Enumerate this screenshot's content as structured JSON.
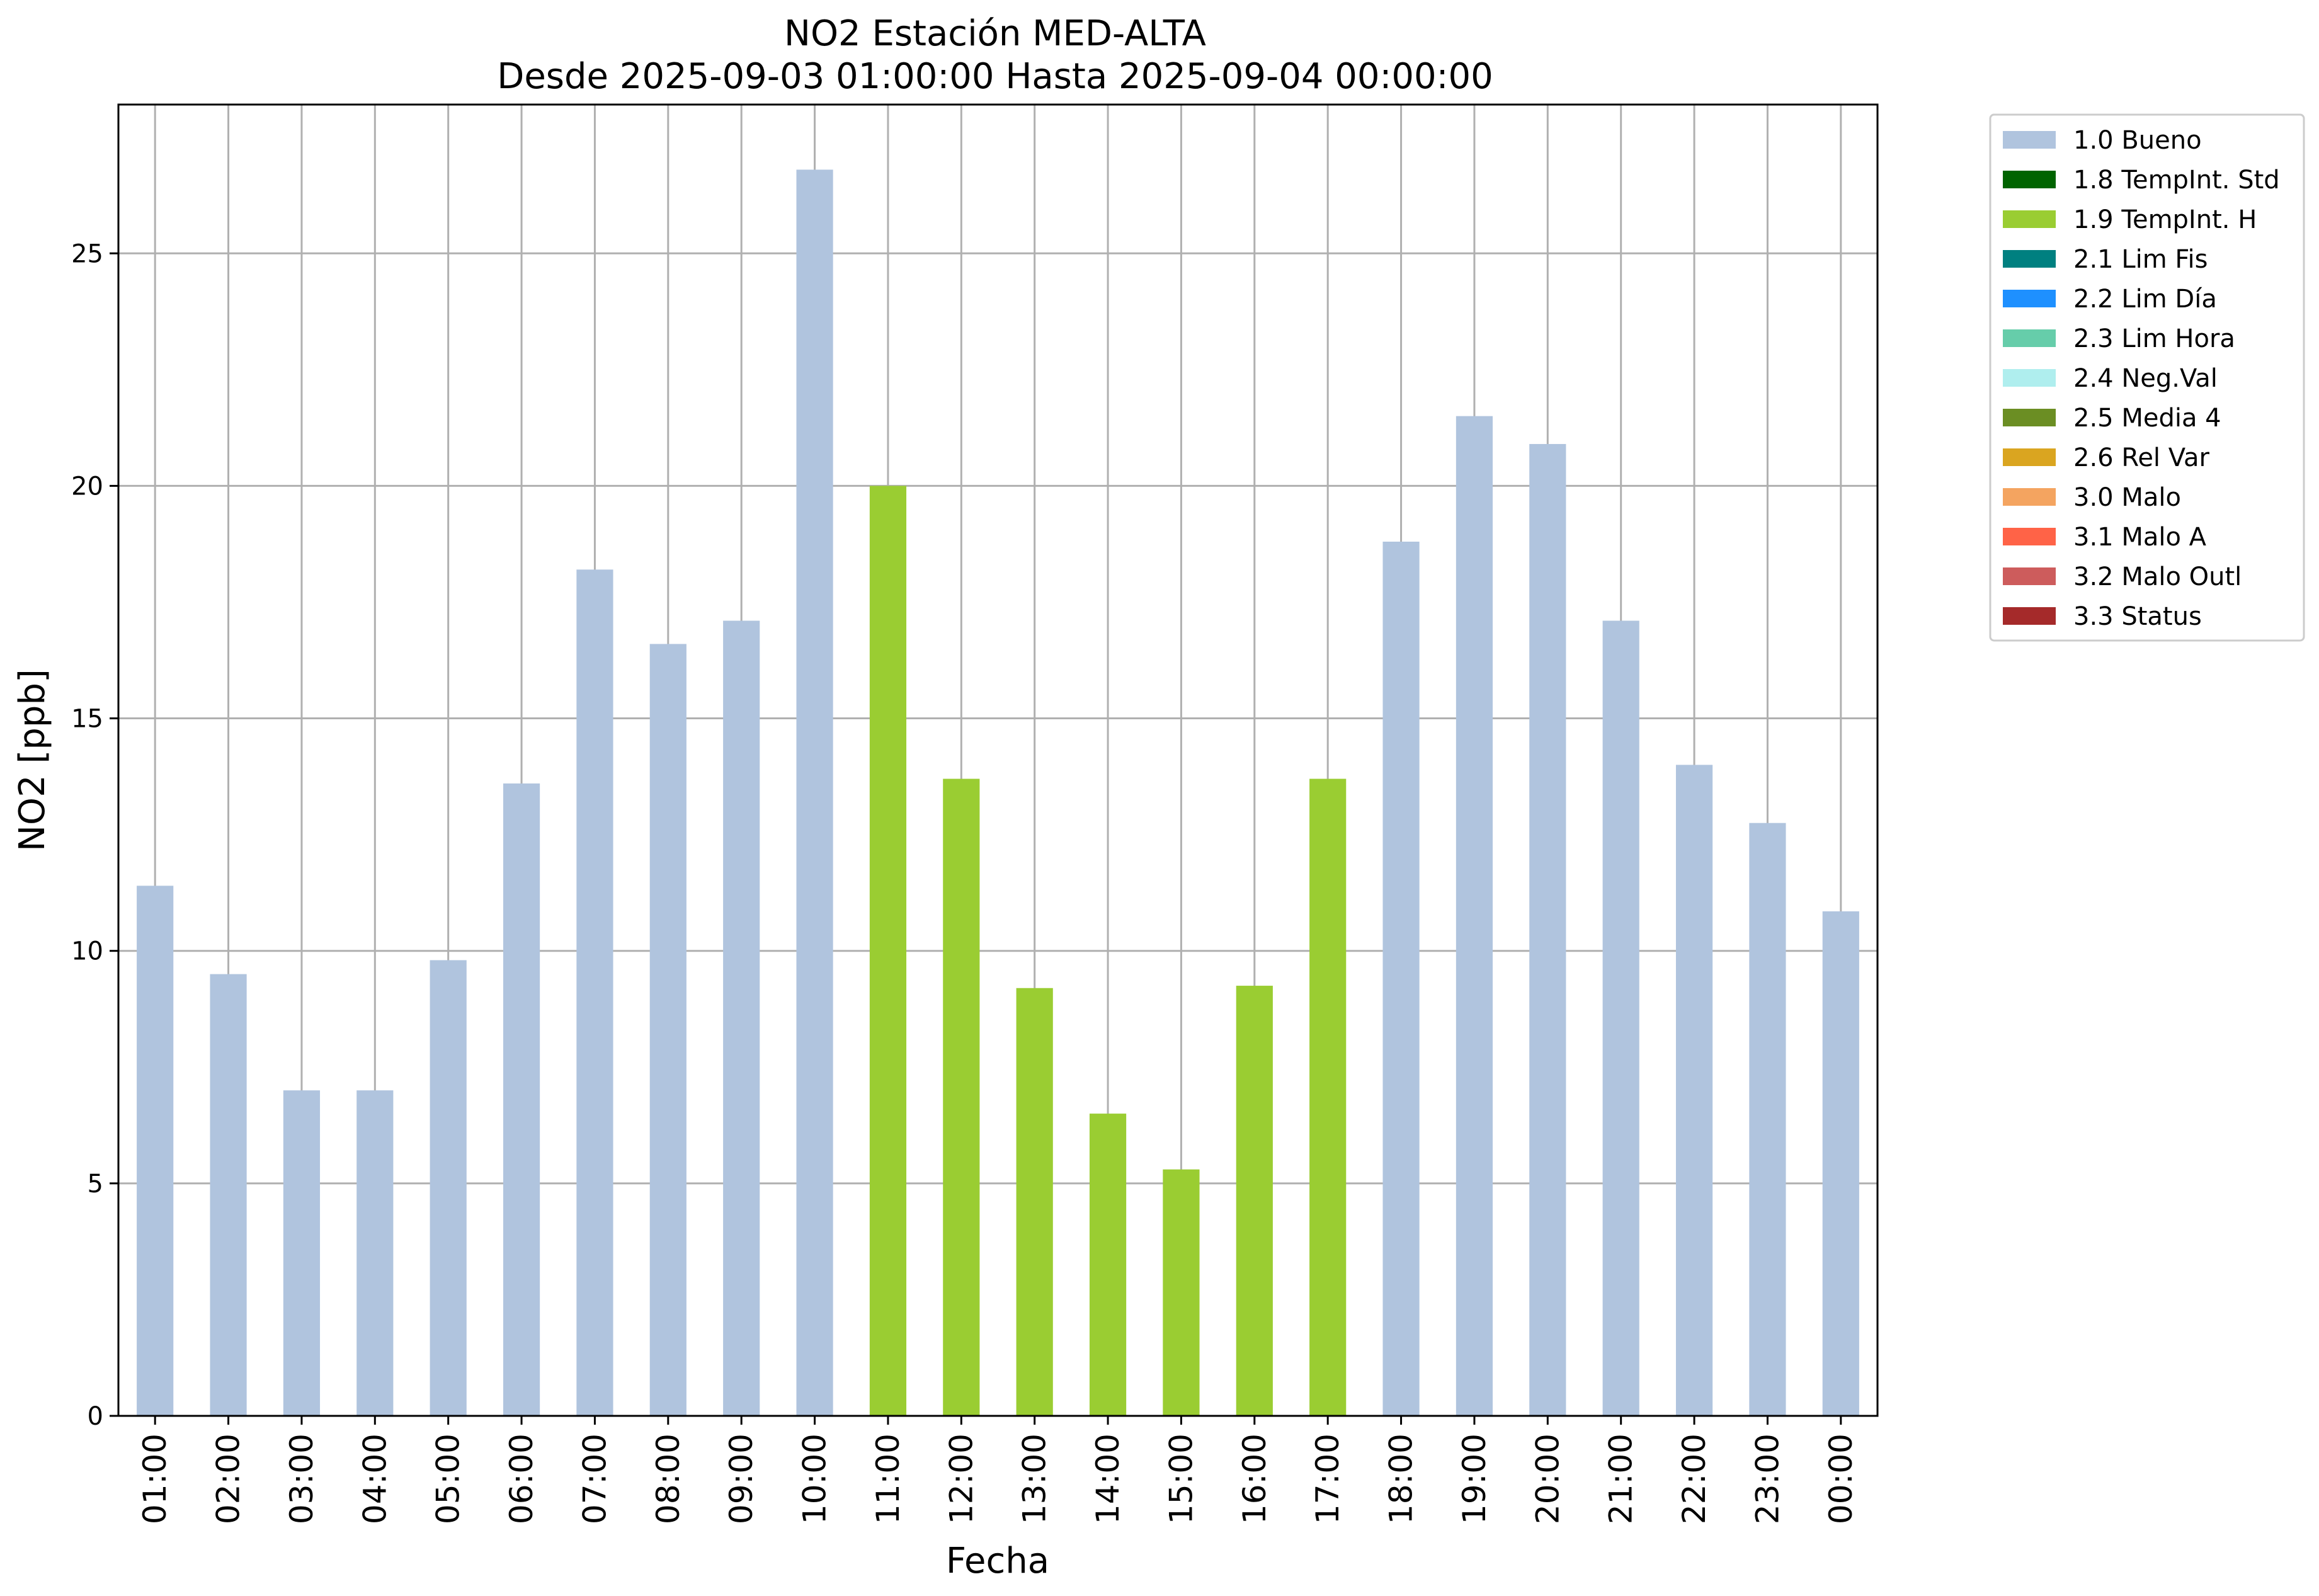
{
  "chart_data": {
    "type": "bar",
    "title": "NO2 Estación MED-ALTA",
    "subtitle": "Desde 2025-09-03 01:00:00 Hasta 2025-09-04 00:00:00",
    "xlabel": "Fecha",
    "ylabel": "NO2 [ppb]",
    "ylim": [
      0,
      28.2
    ],
    "yticks": [
      0,
      5,
      10,
      15,
      20,
      25
    ],
    "grid": true,
    "legend_position": "outside-top-right",
    "categories": [
      "01:00",
      "02:00",
      "03:00",
      "04:00",
      "05:00",
      "06:00",
      "07:00",
      "08:00",
      "09:00",
      "10:00",
      "11:00",
      "12:00",
      "13:00",
      "14:00",
      "15:00",
      "16:00",
      "17:00",
      "18:00",
      "19:00",
      "20:00",
      "21:00",
      "22:00",
      "23:00",
      "00:00"
    ],
    "values": [
      11.4,
      9.5,
      7.0,
      7.0,
      9.8,
      13.6,
      18.2,
      16.6,
      17.1,
      26.8,
      20.0,
      13.7,
      9.2,
      6.5,
      5.3,
      9.25,
      13.7,
      18.8,
      21.5,
      20.9,
      17.1,
      14.0,
      12.75,
      10.85
    ],
    "flags": [
      "1.0",
      "1.0",
      "1.0",
      "1.0",
      "1.0",
      "1.0",
      "1.0",
      "1.0",
      "1.0",
      "1.0",
      "1.9",
      "1.9",
      "1.9",
      "1.9",
      "1.9",
      "1.9",
      "1.9",
      "1.0",
      "1.0",
      "1.0",
      "1.0",
      "1.0",
      "1.0",
      "1.0"
    ],
    "legend": [
      {
        "code": "1.0",
        "label": "1.0 Bueno",
        "color": "#b0c4de"
      },
      {
        "code": "1.8",
        "label": "1.8 TempInt. Std",
        "color": "#006400"
      },
      {
        "code": "1.9",
        "label": "1.9 TempInt. H",
        "color": "#9acd32"
      },
      {
        "code": "2.1",
        "label": "2.1 Lim Fis",
        "color": "#008080"
      },
      {
        "code": "2.2",
        "label": "2.2 Lim Día",
        "color": "#1e90ff"
      },
      {
        "code": "2.3",
        "label": "2.3 Lim Hora",
        "color": "#66cdaa"
      },
      {
        "code": "2.4",
        "label": "2.4 Neg.Val",
        "color": "#afeeee"
      },
      {
        "code": "2.5",
        "label": "2.5 Media 4",
        "color": "#6b8e23"
      },
      {
        "code": "2.6",
        "label": "2.6 Rel Var",
        "color": "#daa520"
      },
      {
        "code": "3.0",
        "label": "3.0 Malo",
        "color": "#f4a460"
      },
      {
        "code": "3.1",
        "label": "3.1 Malo A",
        "color": "#ff6347"
      },
      {
        "code": "3.2",
        "label": "3.2 Malo Outl",
        "color": "#cd5c5c"
      },
      {
        "code": "3.3",
        "label": "3.3 Status",
        "color": "#a52a2a"
      }
    ]
  }
}
